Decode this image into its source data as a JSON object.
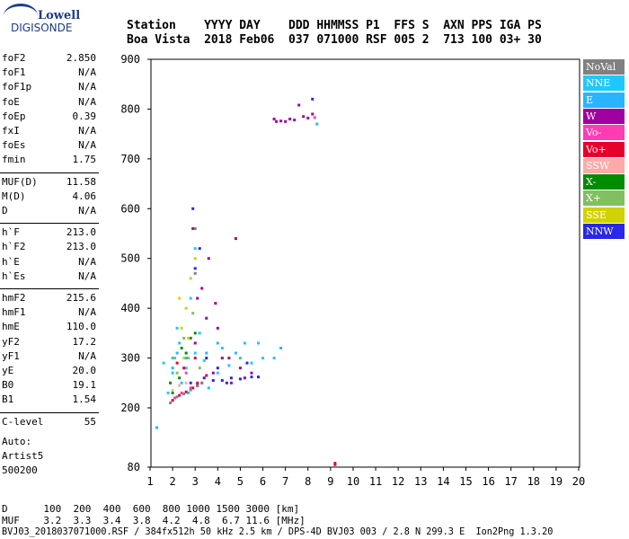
{
  "logo": {
    "top": "Lowell",
    "bottom": "DIGISONDE"
  },
  "header": {
    "line1": "Station    YYYY DAY    DDD HHMMSS P1  FFS S  AXN PPS IGA PS",
    "line2": "Boa Vista  2018 Feb06  037 071000 RSF 005 2  713 100 03+ 30"
  },
  "params": [
    {
      "name": "foF2",
      "value": "2.850"
    },
    {
      "name": "foF1",
      "value": "N/A"
    },
    {
      "name": "foF1p",
      "value": "N/A"
    },
    {
      "name": "foE",
      "value": "N/A"
    },
    {
      "name": "foEp",
      "value": "0.39"
    },
    {
      "name": "fxI",
      "value": "N/A"
    },
    {
      "name": "foEs",
      "value": "N/A"
    },
    {
      "name": "fmin",
      "value": "1.75"
    },
    {
      "name": "MUF(D)",
      "value": "11.58"
    },
    {
      "name": "M(D)",
      "value": "4.06"
    },
    {
      "name": "D",
      "value": "N/A"
    },
    {
      "name": "h`F",
      "value": "213.0"
    },
    {
      "name": "h`F2",
      "value": "213.0"
    },
    {
      "name": "h`E",
      "value": "N/A"
    },
    {
      "name": "h`Es",
      "value": "N/A"
    },
    {
      "name": "hmF2",
      "value": "215.6"
    },
    {
      "name": "hmF1",
      "value": "N/A"
    },
    {
      "name": "hmE",
      "value": "110.0"
    },
    {
      "name": "yF2",
      "value": "17.2"
    },
    {
      "name": "yF1",
      "value": "N/A"
    },
    {
      "name": "yE",
      "value": "20.0"
    },
    {
      "name": "B0",
      "value": "19.1"
    },
    {
      "name": "B1",
      "value": "1.54"
    },
    {
      "name": "C-level",
      "value": "55"
    }
  ],
  "auto": {
    "line1": "Auto:",
    "line2": "Artist5",
    "line3": "500200"
  },
  "legend": [
    {
      "label": "NoVal",
      "color": "#808080"
    },
    {
      "label": "NNE",
      "color": "#1ec8ff"
    },
    {
      "label": "E",
      "color": "#28b4ff"
    },
    {
      "label": "W",
      "color": "#a000a0"
    },
    {
      "label": "Vo-",
      "color": "#ff3cb4"
    },
    {
      "label": "Vo+",
      "color": "#e8002c"
    },
    {
      "label": "SSW",
      "color": "#ffaaaa"
    },
    {
      "label": "X-",
      "color": "#008c00"
    },
    {
      "label": "X+",
      "color": "#80c060"
    },
    {
      "label": "SSE",
      "color": "#d2d200"
    },
    {
      "label": "NNW",
      "color": "#2828e6"
    }
  ],
  "footer": {
    "d_line": "D      100  200  400  600  800 1000 1500 3000 [km]",
    "muf_line": "MUF    3.2  3.3  3.4  3.8  4.2  4.8  6.7 11.6 [MHz]",
    "info_line": "BVJ03_2018037071000.RSF / 384fx512h 50 kHz 2.5 km / DPS-4D BVJ03 003 / 2.8 N 299.3 E  Ion2Png 1.3.20"
  },
  "chart_data": {
    "type": "scatter",
    "title": "",
    "xlabel": "",
    "ylabel": "",
    "xlim": [
      1,
      20
    ],
    "ylim": [
      80,
      900
    ],
    "x_ticks": [
      1,
      2,
      3,
      4,
      5,
      6,
      7,
      8,
      9,
      10,
      11,
      12,
      13,
      14,
      15,
      16,
      17,
      18,
      19,
      20
    ],
    "y_ticks": [
      80,
      200,
      300,
      400,
      500,
      600,
      700,
      800,
      900
    ],
    "series": [
      {
        "name": "NNE",
        "color": "#1ec8ff",
        "points": [
          [
            2.0,
            300
          ],
          [
            2.3,
            330
          ],
          [
            2.6,
            280
          ],
          [
            3.0,
            310
          ],
          [
            3.4,
            295
          ],
          [
            4.0,
            270
          ],
          [
            4.5,
            285
          ],
          [
            5.0,
            300
          ],
          [
            5.5,
            290
          ],
          [
            6.0,
            300
          ],
          [
            6.5,
            300
          ],
          [
            2.2,
            360
          ],
          [
            2.8,
            420
          ],
          [
            3.0,
            520
          ],
          [
            2.4,
            250
          ],
          [
            1.8,
            230
          ],
          [
            1.6,
            290
          ],
          [
            2.0,
            270
          ],
          [
            3.2,
            350
          ],
          [
            4.2,
            320
          ],
          [
            5.2,
            330
          ],
          [
            5.8,
            330
          ],
          [
            3.6,
            240
          ],
          [
            2.7,
            230
          ]
        ]
      },
      {
        "name": "W",
        "color": "#a000a0",
        "points": [
          [
            3.0,
            330
          ],
          [
            3.5,
            380
          ],
          [
            4.0,
            360
          ],
          [
            4.5,
            300
          ],
          [
            5.0,
            280
          ],
          [
            5.5,
            270
          ],
          [
            3.3,
            440
          ],
          [
            2.9,
            560
          ],
          [
            3.6,
            500
          ],
          [
            4.8,
            540
          ],
          [
            4.2,
            300
          ],
          [
            3.8,
            270
          ],
          [
            6.5,
            780
          ],
          [
            7.0,
            775
          ],
          [
            7.4,
            778
          ],
          [
            7.8,
            785
          ],
          [
            8.2,
            790
          ],
          [
            7.6,
            808
          ],
          [
            6.8,
            776
          ],
          [
            6.6,
            775
          ],
          [
            7.2,
            780
          ],
          [
            8.0,
            782
          ],
          [
            4.6,
            250
          ],
          [
            5.2,
            260
          ],
          [
            3.1,
            420
          ],
          [
            3.9,
            410
          ]
        ]
      },
      {
        "name": "NNW",
        "color": "#2828e6",
        "points": [
          [
            3.4,
            260
          ],
          [
            3.8,
            255
          ],
          [
            4.2,
            255
          ],
          [
            4.6,
            260
          ],
          [
            5.0,
            258
          ],
          [
            5.5,
            262
          ],
          [
            5.8,
            262
          ],
          [
            3.1,
            245
          ],
          [
            2.8,
            250
          ],
          [
            4.0,
            280
          ],
          [
            5.3,
            290
          ],
          [
            3.5,
            300
          ],
          [
            3.0,
            480
          ],
          [
            3.2,
            520
          ],
          [
            2.9,
            600
          ],
          [
            8.2,
            820
          ],
          [
            4.4,
            250
          ]
        ]
      },
      {
        "name": "Vo+",
        "color": "#e8002c",
        "points": [
          [
            2.0,
            215
          ],
          [
            2.3,
            225
          ],
          [
            2.6,
            232
          ],
          [
            2.9,
            240
          ],
          [
            3.1,
            250
          ],
          [
            3.5,
            265
          ],
          [
            2.2,
            290
          ],
          [
            2.5,
            280
          ],
          [
            3.0,
            300
          ],
          [
            9.2,
            85
          ],
          [
            9.2,
            88
          ]
        ]
      },
      {
        "name": "Vo-",
        "color": "#ff3cb4",
        "points": [
          [
            2.1,
            220
          ],
          [
            2.4,
            230
          ],
          [
            2.8,
            240
          ],
          [
            3.3,
            250
          ],
          [
            2.6,
            270
          ],
          [
            8.3,
            783
          ]
        ]
      },
      {
        "name": "X-",
        "color": "#008c00",
        "points": [
          [
            2.0,
            230
          ],
          [
            2.4,
            320
          ],
          [
            2.8,
            340
          ],
          [
            3.0,
            350
          ],
          [
            2.3,
            260
          ],
          [
            1.9,
            250
          ],
          [
            2.6,
            310
          ]
        ]
      },
      {
        "name": "X+",
        "color": "#80c060",
        "points": [
          [
            2.1,
            300
          ],
          [
            2.5,
            340
          ],
          [
            2.9,
            390
          ],
          [
            2.7,
            300
          ],
          [
            2.2,
            270
          ],
          [
            3.2,
            280
          ]
        ]
      },
      {
        "name": "SSE",
        "color": "#d2d200",
        "points": [
          [
            2.4,
            360
          ],
          [
            2.6,
            400
          ],
          [
            2.8,
            460
          ],
          [
            3.0,
            500
          ],
          [
            2.5,
            300
          ],
          [
            2.7,
            340
          ],
          [
            2.3,
            420
          ]
        ]
      },
      {
        "name": "SSW",
        "color": "#ffaaaa",
        "points": [
          [
            2.0,
            235
          ],
          [
            2.3,
            245
          ],
          [
            2.6,
            250
          ]
        ]
      },
      {
        "name": "NoVal",
        "color": "#808080",
        "points": [
          [
            1.9,
            210
          ],
          [
            2.2,
            222
          ],
          [
            2.5,
            228
          ],
          [
            2.8,
            236
          ],
          [
            3.1,
            244
          ],
          [
            3.3,
            250
          ],
          [
            3.0,
            470
          ],
          [
            3.0,
            560
          ]
        ]
      },
      {
        "name": "E",
        "color": "#28b4ff",
        "points": [
          [
            2.0,
            280
          ],
          [
            2.2,
            310
          ],
          [
            2.6,
            300
          ],
          [
            1.3,
            160
          ],
          [
            3.5,
            310
          ],
          [
            4.8,
            310
          ],
          [
            8.4,
            770
          ],
          [
            6.8,
            320
          ],
          [
            4.0,
            330
          ]
        ]
      }
    ]
  }
}
